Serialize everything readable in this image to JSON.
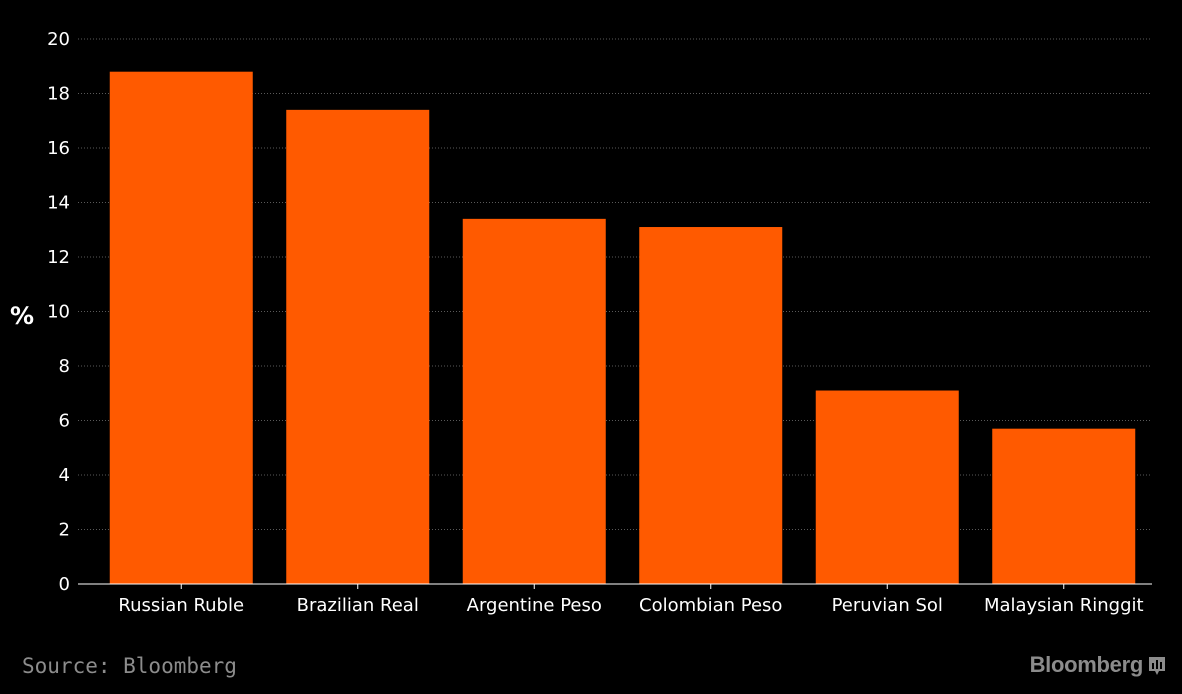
{
  "chart_data": {
    "type": "bar",
    "categories": [
      "Russian Ruble",
      "Brazilian Real",
      "Argentine Peso",
      "Colombian Peso",
      "Peruvian Sol",
      "Malaysian Ringgit"
    ],
    "values": [
      18.8,
      17.4,
      13.4,
      13.1,
      7.1,
      5.7
    ],
    "ylabel": "%",
    "ylim": [
      0,
      20
    ],
    "yticks": [
      "0",
      "2",
      "4",
      "6",
      "8",
      "10",
      "12",
      "14",
      "16",
      "18",
      "20"
    ],
    "grid": true,
    "bar_color": "#ff5a00",
    "background": "#000000"
  },
  "footer": {
    "source": "Source: Bloomberg",
    "brand": "Bloomberg"
  },
  "icons": {
    "brand_icon": "bloomberg-chart-icon"
  }
}
